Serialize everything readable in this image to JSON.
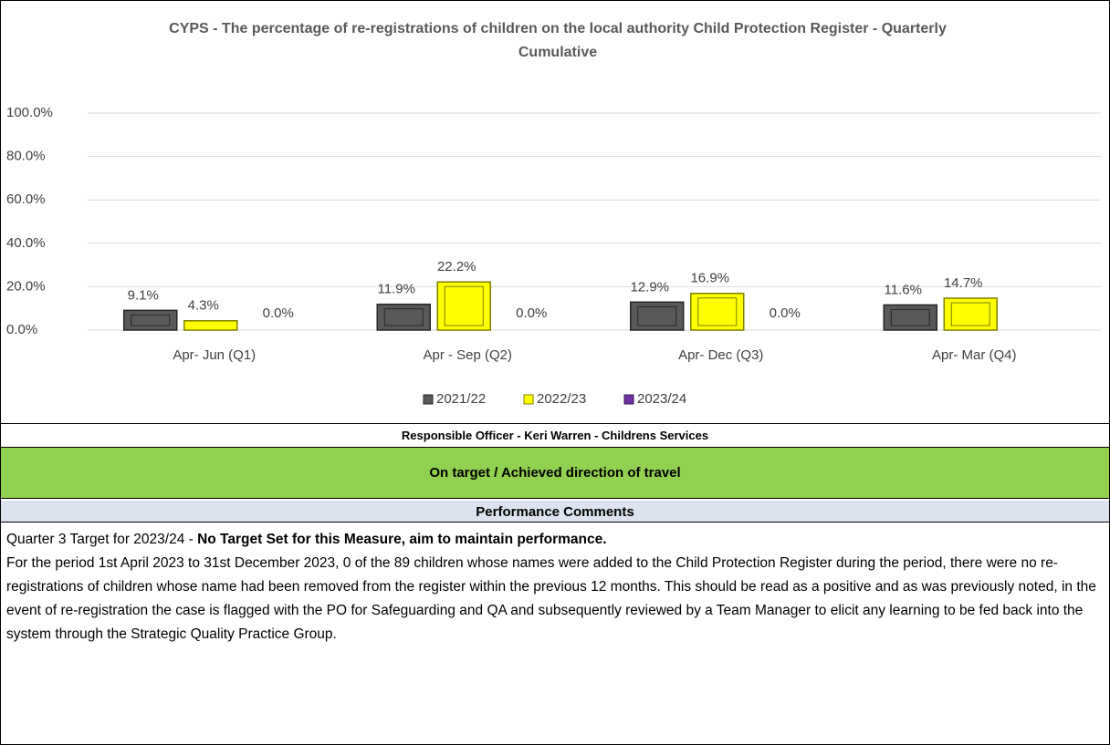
{
  "chart_data": {
    "type": "bar",
    "title": "CYPS -  The percentage of re-registrations of children on the local authority Child Protection Register - Quarterly Cumulative",
    "categories": [
      "Apr- Jun  (Q1)",
      "Apr - Sep  (Q2)",
      "Apr- Dec  (Q3)",
      "Apr- Mar  (Q4)"
    ],
    "series": [
      {
        "name": "2021/22",
        "color": "#595959",
        "values": [
          9.1,
          11.9,
          12.9,
          11.6
        ],
        "value_labels": [
          "9.1%",
          "11.9%",
          "12.9%",
          "11.6%"
        ]
      },
      {
        "name": "2022/23",
        "color": "#ffff00",
        "values": [
          4.3,
          22.2,
          16.9,
          14.7
        ],
        "value_labels": [
          "4.3%",
          "22.2%",
          "16.9%",
          "14.7%"
        ]
      },
      {
        "name": "2023/24",
        "color": "#7030a0",
        "values": [
          0,
          0,
          0,
          null
        ],
        "value_labels": [
          "0.0%",
          "0.0%",
          "0.0%",
          null
        ]
      }
    ],
    "ylim": [
      0,
      100
    ],
    "yticks": [
      {
        "value": 0,
        "label": "0.0%"
      },
      {
        "value": 20,
        "label": "20.0%"
      },
      {
        "value": 40,
        "label": "40.0%"
      },
      {
        "value": 60,
        "label": "60.0%"
      },
      {
        "value": 80,
        "label": "80.0%"
      },
      {
        "value": 100,
        "label": "100.0%"
      }
    ],
    "grid": true,
    "legend": "bottom"
  },
  "officer": "Responsible Officer - Keri Warren - Childrens Services",
  "status": "On target / Achieved direction of travel",
  "comments": {
    "heading": "Performance Comments",
    "target_prefix": "Quarter 3 Target for 2023/24 - ",
    "target_bold": "No Target Set for this Measure, aim to maintain performance.",
    "body": "For the period 1st April 2023 to 31st December 2023, 0 of the 89 children whose names were added to the Child Protection Register during the period, there were no re-registrations of children whose name had been removed from the register within the previous 12 months. This should be read as a positive and as was previously noted, in the event of re-registration the case is flagged with the PO for Safeguarding and QA and subsequently reviewed by a Team Manager to elicit any learning to be fed back into the system through the Strategic Quality Practice Group."
  }
}
